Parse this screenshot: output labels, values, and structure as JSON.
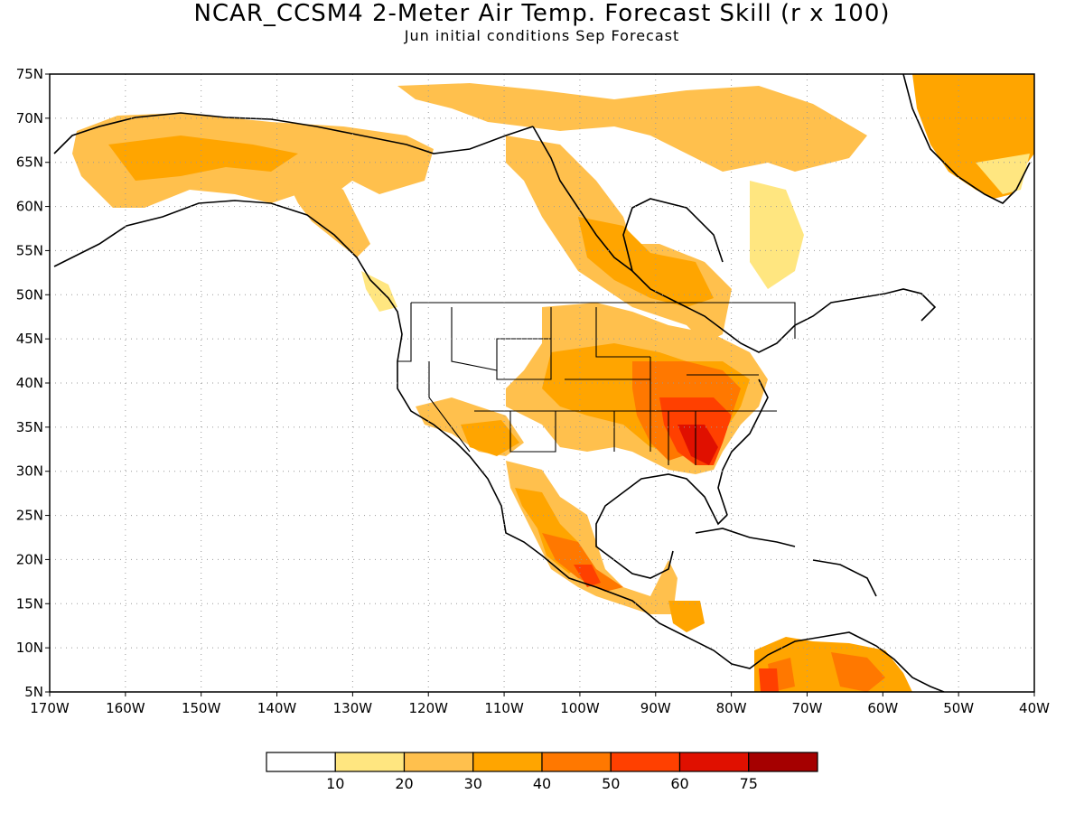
{
  "title": "NCAR_CCSM4 2-Meter Air Temp. Forecast Skill (r x 100)",
  "subtitle": "Jun initial conditions  Sep Forecast",
  "map": {
    "lon_range": [
      -170,
      -40
    ],
    "lat_range": [
      5,
      75
    ],
    "lon_ticks": [
      "170W",
      "160W",
      "150W",
      "140W",
      "130W",
      "120W",
      "110W",
      "100W",
      "90W",
      "80W",
      "70W",
      "60W",
      "50W",
      "40W"
    ],
    "lat_ticks": [
      "5N",
      "10N",
      "15N",
      "20N",
      "25N",
      "30N",
      "35N",
      "40N",
      "45N",
      "50N",
      "55N",
      "60N",
      "65N",
      "70N",
      "75N"
    ],
    "grid": "dotted"
  },
  "colorbar": {
    "levels": [
      "10",
      "20",
      "30",
      "40",
      "50",
      "60",
      "75"
    ],
    "colors": [
      "#ffffff",
      "#ffe680",
      "#ffc04d",
      "#ffa500",
      "#ff7800",
      "#ff4000",
      "#e01000",
      "#a50000"
    ]
  }
}
